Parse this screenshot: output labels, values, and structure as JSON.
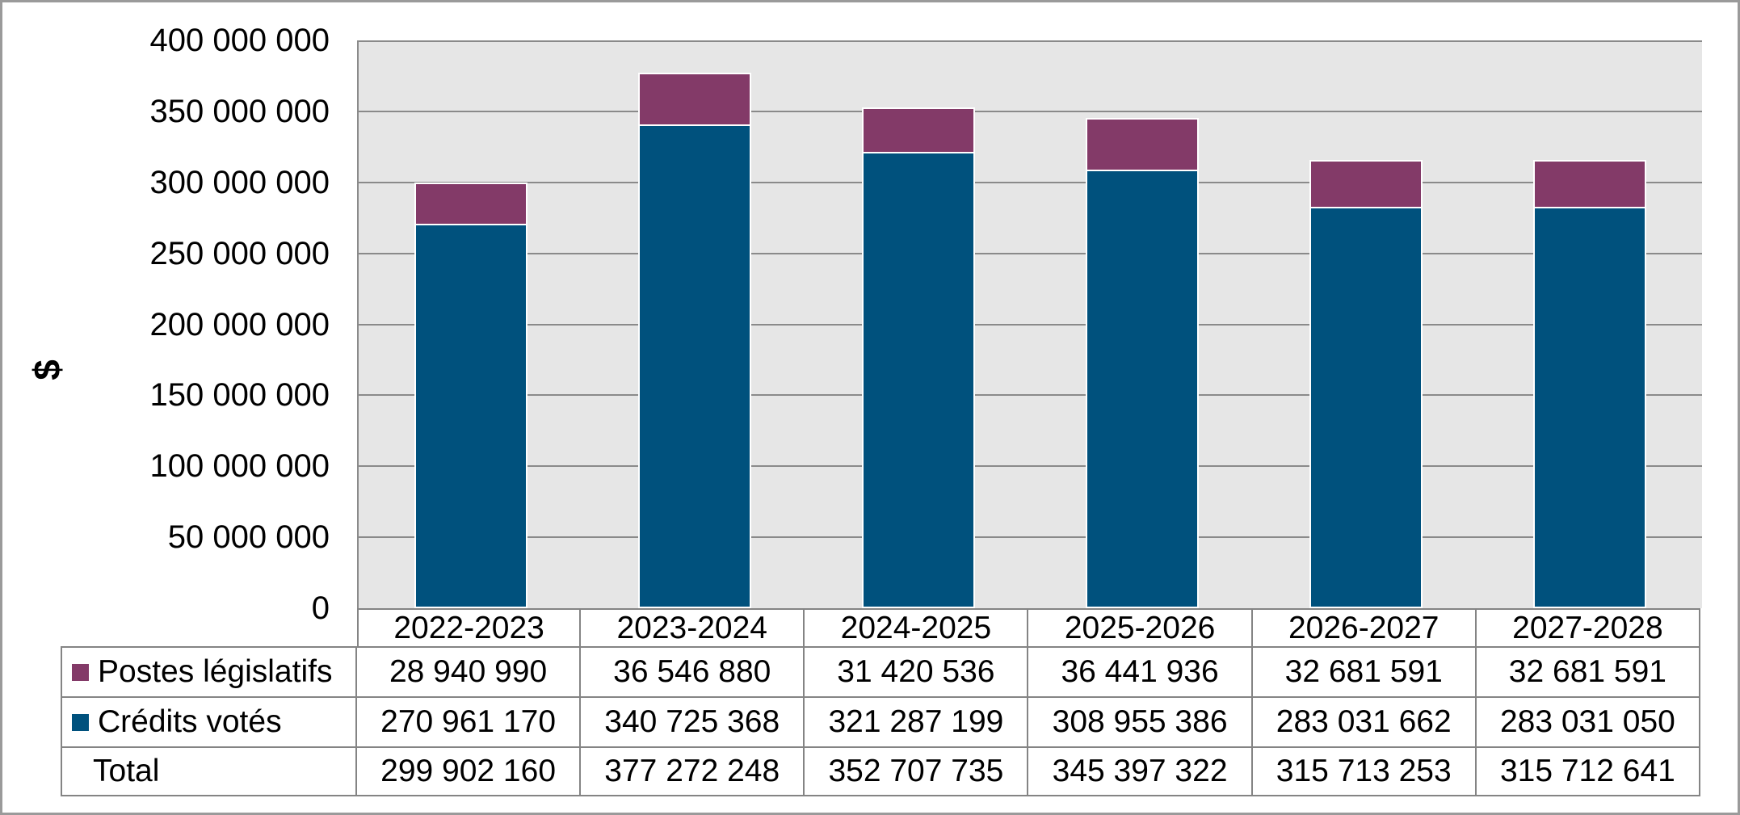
{
  "colors": {
    "credits_votes": "#00517D",
    "postes_legislatifs": "#833A68",
    "plot_background": "#E6E6E6",
    "gridline": "#8a8a8a",
    "table_border": "#848484",
    "frame_border": "#9a9a9a",
    "bar_outline": "#ffffff",
    "text": "#000000"
  },
  "y_axis": {
    "title": "$",
    "tick_labels": [
      "400 000 000",
      "350 000 000",
      "300 000 000",
      "250 000 000",
      "200 000 000",
      "150 000 000",
      "100 000 000",
      "50 000 000",
      "0"
    ],
    "max": 400000000,
    "step": 50000000
  },
  "chart_data": {
    "type": "bar",
    "stacked": true,
    "title": "",
    "categories": [
      "2022-2023",
      "2023-2024",
      "2024-2025",
      "2025-2026",
      "2026-2027",
      "2027-2028"
    ],
    "series": [
      {
        "name": "Crédits votés",
        "color": "#00517D",
        "values": [
          270961170,
          340725368,
          321287199,
          308955386,
          283031662,
          283031050
        ]
      },
      {
        "name": "Postes législatifs",
        "color": "#833A68",
        "values": [
          28940990,
          36546880,
          31420536,
          36441936,
          32681591,
          32681591
        ]
      }
    ],
    "totals": [
      299902160,
      377272248,
      352707735,
      345397322,
      315713253,
      315712641
    ],
    "xlabel": "",
    "ylabel": "$",
    "ylim": [
      0,
      400000000
    ],
    "grid": true,
    "legend_position": "table-left"
  },
  "table": {
    "rows": [
      {
        "label": "Postes législatifs",
        "marker_color": "#833A68",
        "values": [
          "28 940 990",
          "36 546 880",
          "31 420 536",
          "36 441 936",
          "32 681 591",
          "32 681 591"
        ]
      },
      {
        "label": "Crédits votés",
        "marker_color": "#00517D",
        "values": [
          "270 961 170",
          "340 725 368",
          "321 287 199",
          "308 955 386",
          "283 031 662",
          "283 031 050"
        ]
      },
      {
        "label": "Total",
        "marker_color": null,
        "values": [
          "299 902 160",
          "377 272 248",
          "352 707 735",
          "345 397 322",
          "315 713 253",
          "315 712 641"
        ]
      }
    ]
  }
}
